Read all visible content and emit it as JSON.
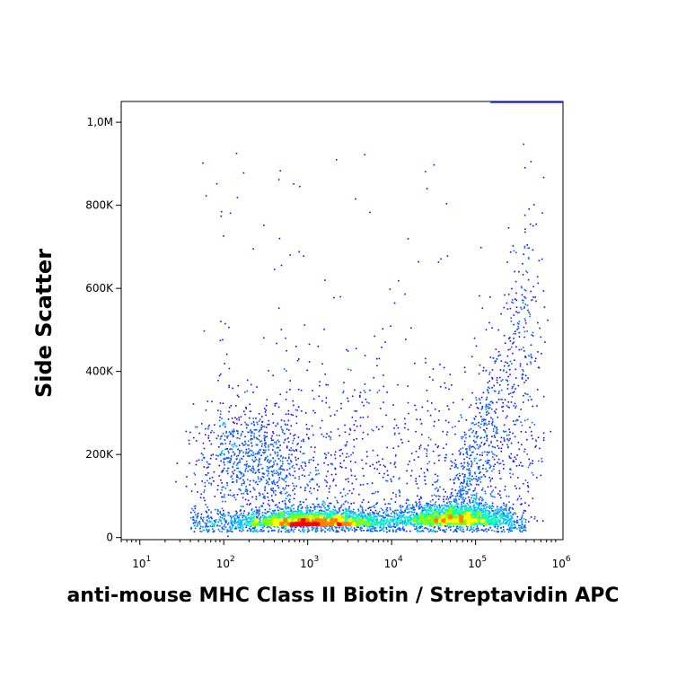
{
  "chart_data": {
    "type": "scatter",
    "subtype": "flow-cytometry-density-dot-plot",
    "title": "",
    "xlabel": "anti-mouse MHC Class II Biotin / Streptavidin APC",
    "ylabel": "Side Scatter",
    "x_scale": "log",
    "xlim": [
      6,
      1100000
    ],
    "ylim": [
      -5000,
      1050000
    ],
    "x_ticks": [
      {
        "value": 10,
        "base": "10",
        "exp": "1"
      },
      {
        "value": 100,
        "base": "10",
        "exp": "2"
      },
      {
        "value": 1000,
        "base": "10",
        "exp": "3"
      },
      {
        "value": 10000,
        "base": "10",
        "exp": "4"
      },
      {
        "value": 100000,
        "base": "10",
        "exp": "5"
      },
      {
        "value": 1000000,
        "base": "10",
        "exp": "6"
      }
    ],
    "y_ticks": [
      {
        "value": 0,
        "label": "0"
      },
      {
        "value": 200000,
        "label": "200K"
      },
      {
        "value": 400000,
        "label": "400K"
      },
      {
        "value": 600000,
        "label": "600K"
      },
      {
        "value": 800000,
        "label": "800K"
      },
      {
        "value": 1000000,
        "label": "1,0M"
      }
    ],
    "grid": false,
    "colormap": [
      "#1a00ff",
      "#0060ff",
      "#00c0ff",
      "#00ffb0",
      "#80ff00",
      "#ffff00",
      "#ff8000",
      "#ff0000"
    ],
    "populations": [
      {
        "x_center": 1200,
        "y_center": 30000,
        "count_share": 0.42,
        "peak": true
      },
      {
        "x_center": 60000,
        "y_center": 35000,
        "count_share": 0.3,
        "peak": true
      },
      {
        "x_center": 250,
        "y_center": 200000,
        "count_share": 0.1,
        "peak": false
      },
      {
        "x_center": 200000,
        "y_center": 450000,
        "count_share": 0.1,
        "peak": false
      },
      {
        "x_center": 2000,
        "y_center": 300000,
        "count_share": 0.08,
        "peak": false
      }
    ]
  }
}
